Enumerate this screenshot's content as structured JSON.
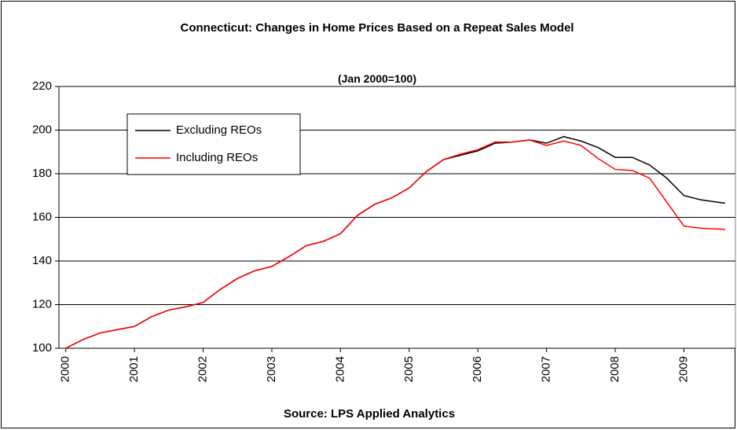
{
  "chart_data": {
    "type": "line",
    "title": "Connecticut: Changes in Home Prices Based on a Repeat Sales Model",
    "subtitle": "(Jan 2000=100)",
    "x_label": "Source: LPS Applied Analytics",
    "x": [
      2000.0,
      2000.25,
      2000.5,
      2000.75,
      2001.0,
      2001.25,
      2001.5,
      2001.75,
      2002.0,
      2002.25,
      2002.5,
      2002.75,
      2003.0,
      2003.25,
      2003.5,
      2003.75,
      2004.0,
      2004.25,
      2004.5,
      2004.75,
      2005.0,
      2005.25,
      2005.5,
      2005.75,
      2006.0,
      2006.25,
      2006.5,
      2006.75,
      2007.0,
      2007.25,
      2007.5,
      2007.75,
      2008.0,
      2008.25,
      2008.5,
      2008.75,
      2009.0,
      2009.25,
      2009.6
    ],
    "series": [
      {
        "name": "Excluding REOs",
        "color": "#000000",
        "values": [
          100,
          104,
          107,
          108.5,
          110,
          114.5,
          117.5,
          119,
          121,
          127,
          132,
          135.5,
          137.5,
          142,
          147,
          149,
          152.5,
          161,
          166,
          169,
          173.5,
          181,
          186.5,
          188.5,
          190.5,
          194,
          194.5,
          195.5,
          194,
          197,
          195,
          192,
          187.5,
          187.5,
          184,
          178,
          170,
          168,
          166.5
        ]
      },
      {
        "name": "Including REOs",
        "color": "#ff0000",
        "values": [
          100,
          104,
          107,
          108.5,
          110,
          114.5,
          117.5,
          119,
          121,
          127,
          132,
          135.5,
          137.5,
          142,
          147,
          149,
          152.5,
          161,
          166,
          169,
          173.5,
          181,
          186.5,
          189,
          191,
          194.5,
          194.5,
          195.5,
          193,
          195,
          193,
          187,
          182,
          181.5,
          178,
          167,
          156,
          155,
          154.5
        ]
      }
    ],
    "xlim": [
      1999.9,
      2009.75
    ],
    "xticks": [
      2000,
      2001,
      2002,
      2003,
      2004,
      2005,
      2006,
      2007,
      2008,
      2009
    ],
    "ylim": [
      100,
      220
    ],
    "yticks": [
      100,
      120,
      140,
      160,
      180,
      200,
      220
    ],
    "grid": true,
    "legend": "upper left"
  }
}
